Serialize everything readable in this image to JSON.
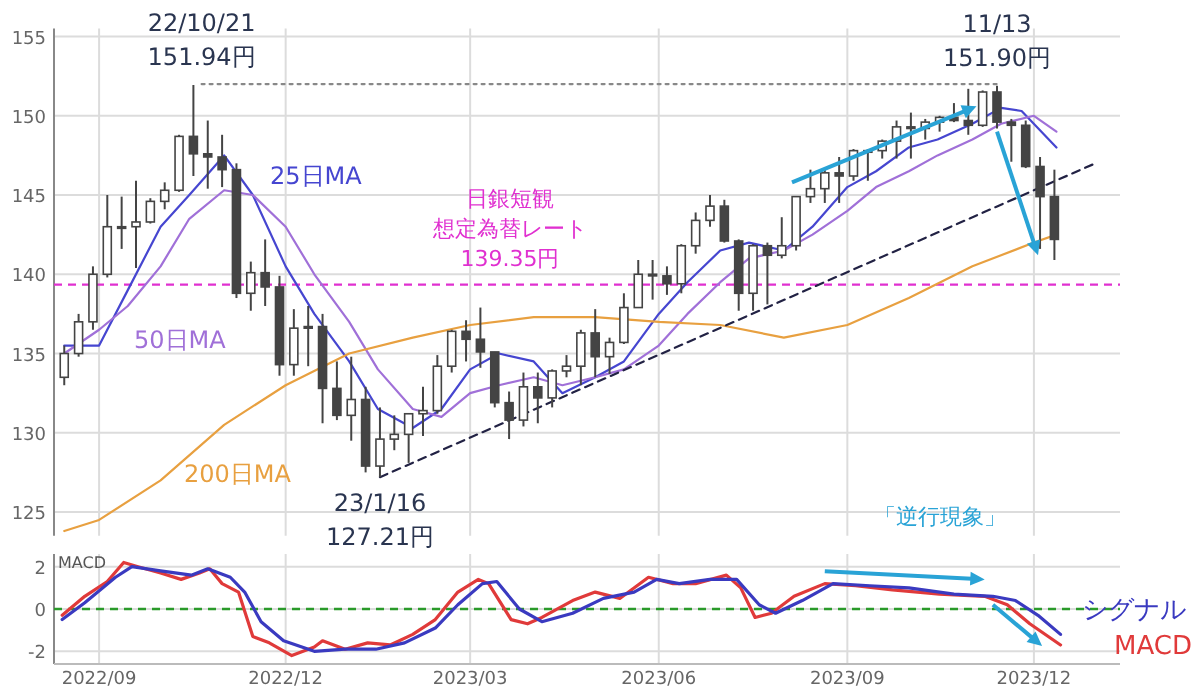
{
  "chart_data": [
    {
      "type": "candlestick",
      "color": "#444444",
      "x": [
        "2022-08-15",
        "2022-08-22",
        "2022-08-29",
        "2022-09-05",
        "2022-09-12",
        "2022-09-19",
        "2022-09-26",
        "2022-10-03",
        "2022-10-10",
        "2022-10-17",
        "2022-10-24",
        "2022-10-31",
        "2022-11-07",
        "2022-11-14",
        "2022-11-21",
        "2022-11-28",
        "2022-12-05",
        "2022-12-12",
        "2022-12-19",
        "2022-12-26",
        "2023-01-02",
        "2023-01-09",
        "2023-01-16",
        "2023-01-23",
        "2023-01-30",
        "2023-02-06",
        "2023-02-13",
        "2023-02-20",
        "2023-02-27",
        "2023-03-06",
        "2023-03-13",
        "2023-03-20",
        "2023-03-27",
        "2023-04-03",
        "2023-04-10",
        "2023-04-17",
        "2023-04-24",
        "2023-05-01",
        "2023-05-08",
        "2023-05-15",
        "2023-05-22",
        "2023-05-29",
        "2023-06-05",
        "2023-06-12",
        "2023-06-19",
        "2023-06-26",
        "2023-07-03",
        "2023-07-10",
        "2023-07-17",
        "2023-07-24",
        "2023-07-31",
        "2023-08-07",
        "2023-08-14",
        "2023-08-21",
        "2023-08-28",
        "2023-09-04",
        "2023-09-11",
        "2023-09-18",
        "2023-09-25",
        "2023-10-02",
        "2023-10-09",
        "2023-10-16",
        "2023-10-23",
        "2023-10-30",
        "2023-11-06",
        "2023-11-13",
        "2023-11-20",
        "2023-11-27",
        "2023-12-04",
        "2023-12-11"
      ],
      "ohlc": [
        [
          133.5,
          135.5,
          133.0,
          135.0
        ],
        [
          135.0,
          137.5,
          134.8,
          137.0
        ],
        [
          137.0,
          140.5,
          136.5,
          140.0
        ],
        [
          140.0,
          145.0,
          139.8,
          143.0
        ],
        [
          143.0,
          144.9,
          141.6,
          143.0
        ],
        [
          143.0,
          145.9,
          140.4,
          143.3
        ],
        [
          143.3,
          144.8,
          143.2,
          144.6
        ],
        [
          144.6,
          145.8,
          144.1,
          145.3
        ],
        [
          145.3,
          148.8,
          145.2,
          148.7
        ],
        [
          148.7,
          151.94,
          146.2,
          147.6
        ],
        [
          147.6,
          149.7,
          145.4,
          147.4
        ],
        [
          147.4,
          148.8,
          145.5,
          146.6
        ],
        [
          146.6,
          147.0,
          138.5,
          138.8
        ],
        [
          138.8,
          140.8,
          137.7,
          140.1
        ],
        [
          140.1,
          142.2,
          138.0,
          139.2
        ],
        [
          139.2,
          139.9,
          133.6,
          134.3
        ],
        [
          134.3,
          137.8,
          133.6,
          136.6
        ],
        [
          136.6,
          138.0,
          134.2,
          136.7
        ],
        [
          136.7,
          137.5,
          130.6,
          132.8
        ],
        [
          132.8,
          134.5,
          130.8,
          131.1
        ],
        [
          131.1,
          134.8,
          129.5,
          132.1
        ],
        [
          132.1,
          132.9,
          127.5,
          127.9
        ],
        [
          127.9,
          131.6,
          127.21,
          129.6
        ],
        [
          129.6,
          131.1,
          128.9,
          129.9
        ],
        [
          129.9,
          131.2,
          128.1,
          131.2
        ],
        [
          131.2,
          132.9,
          129.8,
          131.4
        ],
        [
          131.4,
          134.9,
          131.2,
          134.2
        ],
        [
          134.2,
          136.5,
          133.8,
          136.4
        ],
        [
          136.4,
          137.1,
          134.5,
          135.9
        ],
        [
          135.9,
          137.9,
          134.1,
          135.1
        ],
        [
          135.1,
          135.1,
          131.6,
          131.9
        ],
        [
          131.9,
          132.6,
          129.6,
          130.8
        ],
        [
          130.8,
          133.8,
          130.4,
          132.9
        ],
        [
          132.9,
          133.8,
          130.6,
          132.2
        ],
        [
          132.2,
          134.0,
          131.6,
          133.9
        ],
        [
          133.9,
          134.9,
          133.5,
          134.2
        ],
        [
          134.2,
          136.5,
          133.0,
          136.3
        ],
        [
          136.3,
          137.8,
          133.5,
          134.8
        ],
        [
          134.8,
          136.0,
          133.7,
          135.7
        ],
        [
          135.7,
          138.8,
          135.6,
          137.9
        ],
        [
          137.9,
          140.9,
          137.9,
          140.0
        ],
        [
          140.0,
          140.9,
          138.4,
          139.9
        ],
        [
          139.9,
          140.5,
          138.7,
          139.4
        ],
        [
          139.4,
          141.9,
          138.8,
          141.8
        ],
        [
          141.8,
          143.9,
          141.3,
          143.4
        ],
        [
          143.4,
          145.0,
          143.0,
          144.3
        ],
        [
          144.3,
          144.7,
          142.0,
          142.1
        ],
        [
          142.1,
          142.2,
          137.7,
          138.8
        ],
        [
          138.8,
          141.9,
          137.7,
          141.8
        ],
        [
          141.8,
          142.0,
          138.1,
          141.2
        ],
        [
          141.2,
          143.6,
          141.0,
          141.8
        ],
        [
          141.8,
          144.9,
          141.5,
          144.9
        ],
        [
          144.9,
          146.6,
          144.5,
          145.4
        ],
        [
          145.4,
          146.6,
          144.5,
          146.4
        ],
        [
          146.4,
          147.4,
          144.5,
          146.2
        ],
        [
          146.2,
          147.9,
          145.9,
          147.8
        ],
        [
          147.8,
          147.9,
          145.9,
          147.8
        ],
        [
          147.8,
          148.5,
          147.3,
          148.4
        ],
        [
          148.4,
          149.7,
          147.3,
          149.3
        ],
        [
          149.3,
          150.2,
          147.3,
          149.2
        ],
        [
          149.2,
          149.8,
          148.5,
          149.6
        ],
        [
          149.6,
          150.0,
          149.0,
          149.9
        ],
        [
          149.9,
          150.8,
          149.6,
          149.7
        ],
        [
          149.7,
          151.7,
          148.8,
          149.4
        ],
        [
          149.4,
          151.6,
          149.3,
          151.5
        ],
        [
          151.5,
          151.9,
          149.2,
          149.6
        ],
        [
          149.6,
          149.8,
          147.1,
          149.4
        ],
        [
          149.4,
          149.7,
          146.7,
          146.8
        ],
        [
          146.8,
          147.4,
          141.6,
          144.9
        ],
        [
          144.9,
          146.6,
          140.9,
          142.2
        ]
      ],
      "series": [
        {
          "type": "line",
          "name": "25日MA",
          "color": "#4646d0",
          "x": [
            "2022-08-15",
            "2022-09-01",
            "2022-09-15",
            "2022-10-01",
            "2022-10-15",
            "2022-11-01",
            "2022-11-15",
            "2022-12-01",
            "2022-12-15",
            "2023-01-01",
            "2023-01-15",
            "2023-02-01",
            "2023-02-15",
            "2023-03-01",
            "2023-03-15",
            "2023-04-01",
            "2023-04-15",
            "2023-05-01",
            "2023-05-15",
            "2023-06-01",
            "2023-06-15",
            "2023-07-01",
            "2023-07-15",
            "2023-08-01",
            "2023-08-15",
            "2023-09-01",
            "2023-09-15",
            "2023-10-01",
            "2023-10-15",
            "2023-11-01",
            "2023-11-15",
            "2023-11-25",
            "2023-12-12"
          ],
          "values": [
            135.5,
            135.5,
            139,
            143,
            145,
            147.5,
            145,
            140.5,
            137.5,
            134.5,
            131.5,
            130.3,
            131.5,
            134,
            135,
            134.5,
            132.5,
            133.5,
            134.5,
            137.5,
            139.5,
            141.5,
            142,
            141.5,
            143,
            145.5,
            146.5,
            148,
            148.5,
            149.5,
            150.5,
            150.3,
            148
          ]
        },
        {
          "type": "line",
          "name": "50日MA",
          "color": "#a070d8",
          "x": [
            "2022-08-15",
            "2022-09-01",
            "2022-09-15",
            "2022-10-01",
            "2022-10-15",
            "2022-11-01",
            "2022-11-15",
            "2022-12-01",
            "2022-12-15",
            "2023-01-01",
            "2023-01-15",
            "2023-02-01",
            "2023-02-15",
            "2023-03-01",
            "2023-03-15",
            "2023-04-01",
            "2023-04-15",
            "2023-05-01",
            "2023-05-15",
            "2023-06-01",
            "2023-06-15",
            "2023-07-01",
            "2023-07-15",
            "2023-08-01",
            "2023-08-15",
            "2023-09-01",
            "2023-09-15",
            "2023-10-01",
            "2023-10-15",
            "2023-11-01",
            "2023-11-15",
            "2023-12-01",
            "2023-12-12"
          ],
          "values": [
            135,
            136.5,
            138,
            140.5,
            143.5,
            145.3,
            145,
            143,
            140,
            137,
            134,
            131.5,
            131,
            132.5,
            133,
            133.5,
            133,
            133.5,
            134,
            135.5,
            137.5,
            139.5,
            141,
            141.5,
            142.5,
            144,
            145.5,
            146.5,
            147.5,
            148.5,
            149.5,
            150,
            149
          ]
        },
        {
          "type": "line",
          "name": "200日MA",
          "color": "#e8a040",
          "x": [
            "2022-08-15",
            "2022-09-01",
            "2022-10-01",
            "2022-11-01",
            "2022-12-01",
            "2023-01-01",
            "2023-02-01",
            "2023-03-01",
            "2023-04-01",
            "2023-05-01",
            "2023-06-01",
            "2023-07-01",
            "2023-08-01",
            "2023-09-01",
            "2023-10-01",
            "2023-11-01",
            "2023-12-01",
            "2023-12-12"
          ],
          "values": [
            123.8,
            124.5,
            127,
            130.5,
            133,
            135,
            136,
            136.8,
            137.3,
            137.3,
            137,
            136.8,
            136,
            136.8,
            138.5,
            140.5,
            142,
            142.5
          ]
        },
        {
          "type": "line",
          "color": "#222244",
          "line_style": "dashed",
          "x": [
            "2023-01-16",
            "2023-12-31"
          ],
          "values": [
            127.2,
            147.0
          ]
        },
        {
          "type": "line",
          "color": "#888888",
          "line_style": "dotted",
          "x": [
            "2022-10-21",
            "2023-11-13"
          ],
          "values": [
            152,
            152
          ]
        }
      ],
      "ref_lines": [
        {
          "axis": "y",
          "value": 139.35,
          "label": "日銀短観想定為替レート 139.35円",
          "color": "#e030d0",
          "line_style": "dashed"
        }
      ],
      "annotations": [
        {
          "text": "22/10/21\n151.94円",
          "x": "2022-10-21",
          "y": 151.94
        },
        {
          "text": "23/1/16\n127.21円",
          "x": "2023-01-16",
          "y": 127.21
        },
        {
          "text": "11/13\n151.90円",
          "x": "2023-11-13",
          "y": 151.9
        },
        "「逆行現象」"
      ],
      "xlim": [
        "2022-08-10",
        "2024-01-12"
      ],
      "ylim": [
        123.5,
        155.5
      ],
      "yticks": [
        125,
        130,
        135,
        140,
        145,
        150,
        155
      ],
      "xticks": [
        {
          "value": "2022-09-01",
          "label": null
        },
        {
          "value": "2022-12-01",
          "label": null
        },
        {
          "value": "2023-03-01",
          "label": null
        },
        {
          "value": "2023-06-01",
          "label": null
        },
        {
          "value": "2023-09-01",
          "label": null
        },
        {
          "value": "2023-12-01",
          "label": null
        }
      ],
      "tick_labels": "y",
      "grid": true
    },
    {
      "type": "line",
      "title": "MACD",
      "series": [
        {
          "name": "MACD",
          "color": "#e03a3a",
          "x": [
            "2022-08-14",
            "2022-08-25",
            "2022-09-05",
            "2022-09-13",
            "2022-09-20",
            "2022-10-01",
            "2022-10-11",
            "2022-10-20",
            "2022-10-25",
            "2022-10-31",
            "2022-11-08",
            "2022-11-15",
            "2022-11-23",
            "2022-12-04",
            "2022-12-15",
            "2022-12-19",
            "2022-12-30",
            "2023-01-10",
            "2023-01-21",
            "2023-02-01",
            "2023-02-12",
            "2023-02-23",
            "2023-03-05",
            "2023-03-10",
            "2023-03-21",
            "2023-03-29",
            "2023-04-05",
            "2023-04-20",
            "2023-05-01",
            "2023-05-13",
            "2023-05-27",
            "2023-06-08",
            "2023-06-19",
            "2023-07-04",
            "2023-07-11",
            "2023-07-18",
            "2023-07-26",
            "2023-08-06",
            "2023-08-21",
            "2023-09-05",
            "2023-09-23",
            "2023-10-16",
            "2023-11-07",
            "2023-11-18",
            "2023-11-29",
            "2023-12-14"
          ],
          "values": [
            -0.3,
            0.6,
            1.3,
            2.2,
            2.0,
            1.7,
            1.4,
            1.7,
            1.9,
            1.2,
            0.8,
            -1.3,
            -1.6,
            -2.2,
            -1.8,
            -1.5,
            -1.9,
            -1.6,
            -1.7,
            -1.2,
            -0.5,
            0.8,
            1.4,
            1.2,
            -0.5,
            -0.7,
            -0.4,
            0.4,
            0.8,
            0.5,
            1.5,
            1.2,
            1.2,
            1.6,
            1.0,
            -0.4,
            -0.2,
            0.6,
            1.2,
            1.1,
            0.9,
            0.7,
            0.6,
            0.2,
            -0.7,
            -1.7
          ]
        },
        {
          "name": "シグナル",
          "color": "#3a3ac0",
          "x": [
            "2022-08-14",
            "2022-08-25",
            "2022-09-09",
            "2022-09-17",
            "2022-10-01",
            "2022-10-16",
            "2022-10-24",
            "2022-11-04",
            "2022-11-11",
            "2022-11-19",
            "2022-11-30",
            "2022-12-15",
            "2022-12-30",
            "2023-01-14",
            "2023-01-28",
            "2023-02-12",
            "2023-02-23",
            "2023-03-07",
            "2023-03-14",
            "2023-03-25",
            "2023-04-05",
            "2023-04-20",
            "2023-05-05",
            "2023-05-20",
            "2023-05-31",
            "2023-06-11",
            "2023-06-26",
            "2023-07-09",
            "2023-07-20",
            "2023-07-28",
            "2023-08-10",
            "2023-08-25",
            "2023-09-12",
            "2023-10-01",
            "2023-10-23",
            "2023-11-11",
            "2023-11-22",
            "2023-12-03",
            "2023-12-14"
          ],
          "values": [
            -0.5,
            0.3,
            1.5,
            2.0,
            1.8,
            1.6,
            1.9,
            1.5,
            0.8,
            -0.6,
            -1.5,
            -2.0,
            -1.9,
            -1.9,
            -1.6,
            -0.9,
            0.2,
            1.2,
            1.3,
            0.0,
            -0.6,
            -0.2,
            0.5,
            0.8,
            1.4,
            1.2,
            1.4,
            1.4,
            0.2,
            -0.2,
            0.4,
            1.2,
            1.1,
            1.0,
            0.7,
            0.6,
            0.4,
            -0.3,
            -1.2
          ]
        }
      ],
      "ref_lines": [
        {
          "axis": "y",
          "value": 0,
          "color": "#2a9a2a",
          "line_style": "dashed"
        }
      ],
      "xlim": [
        "2022-08-10",
        "2024-01-12"
      ],
      "ylim": [
        -2.6,
        2.6
      ],
      "yticks": [
        -2,
        0,
        2
      ],
      "xticks": [
        {
          "value": "2022-09-01",
          "label": "2022/09"
        },
        {
          "value": "2022-12-01",
          "label": "2022/12"
        },
        {
          "value": "2023-03-01",
          "label": "2023/03"
        },
        {
          "value": "2023-06-01",
          "label": "2023/06"
        },
        {
          "value": "2023-09-01",
          "label": "2023/09"
        },
        {
          "value": "2023-12-01",
          "label": "2023/12"
        }
      ],
      "grid": true
    }
  ]
}
